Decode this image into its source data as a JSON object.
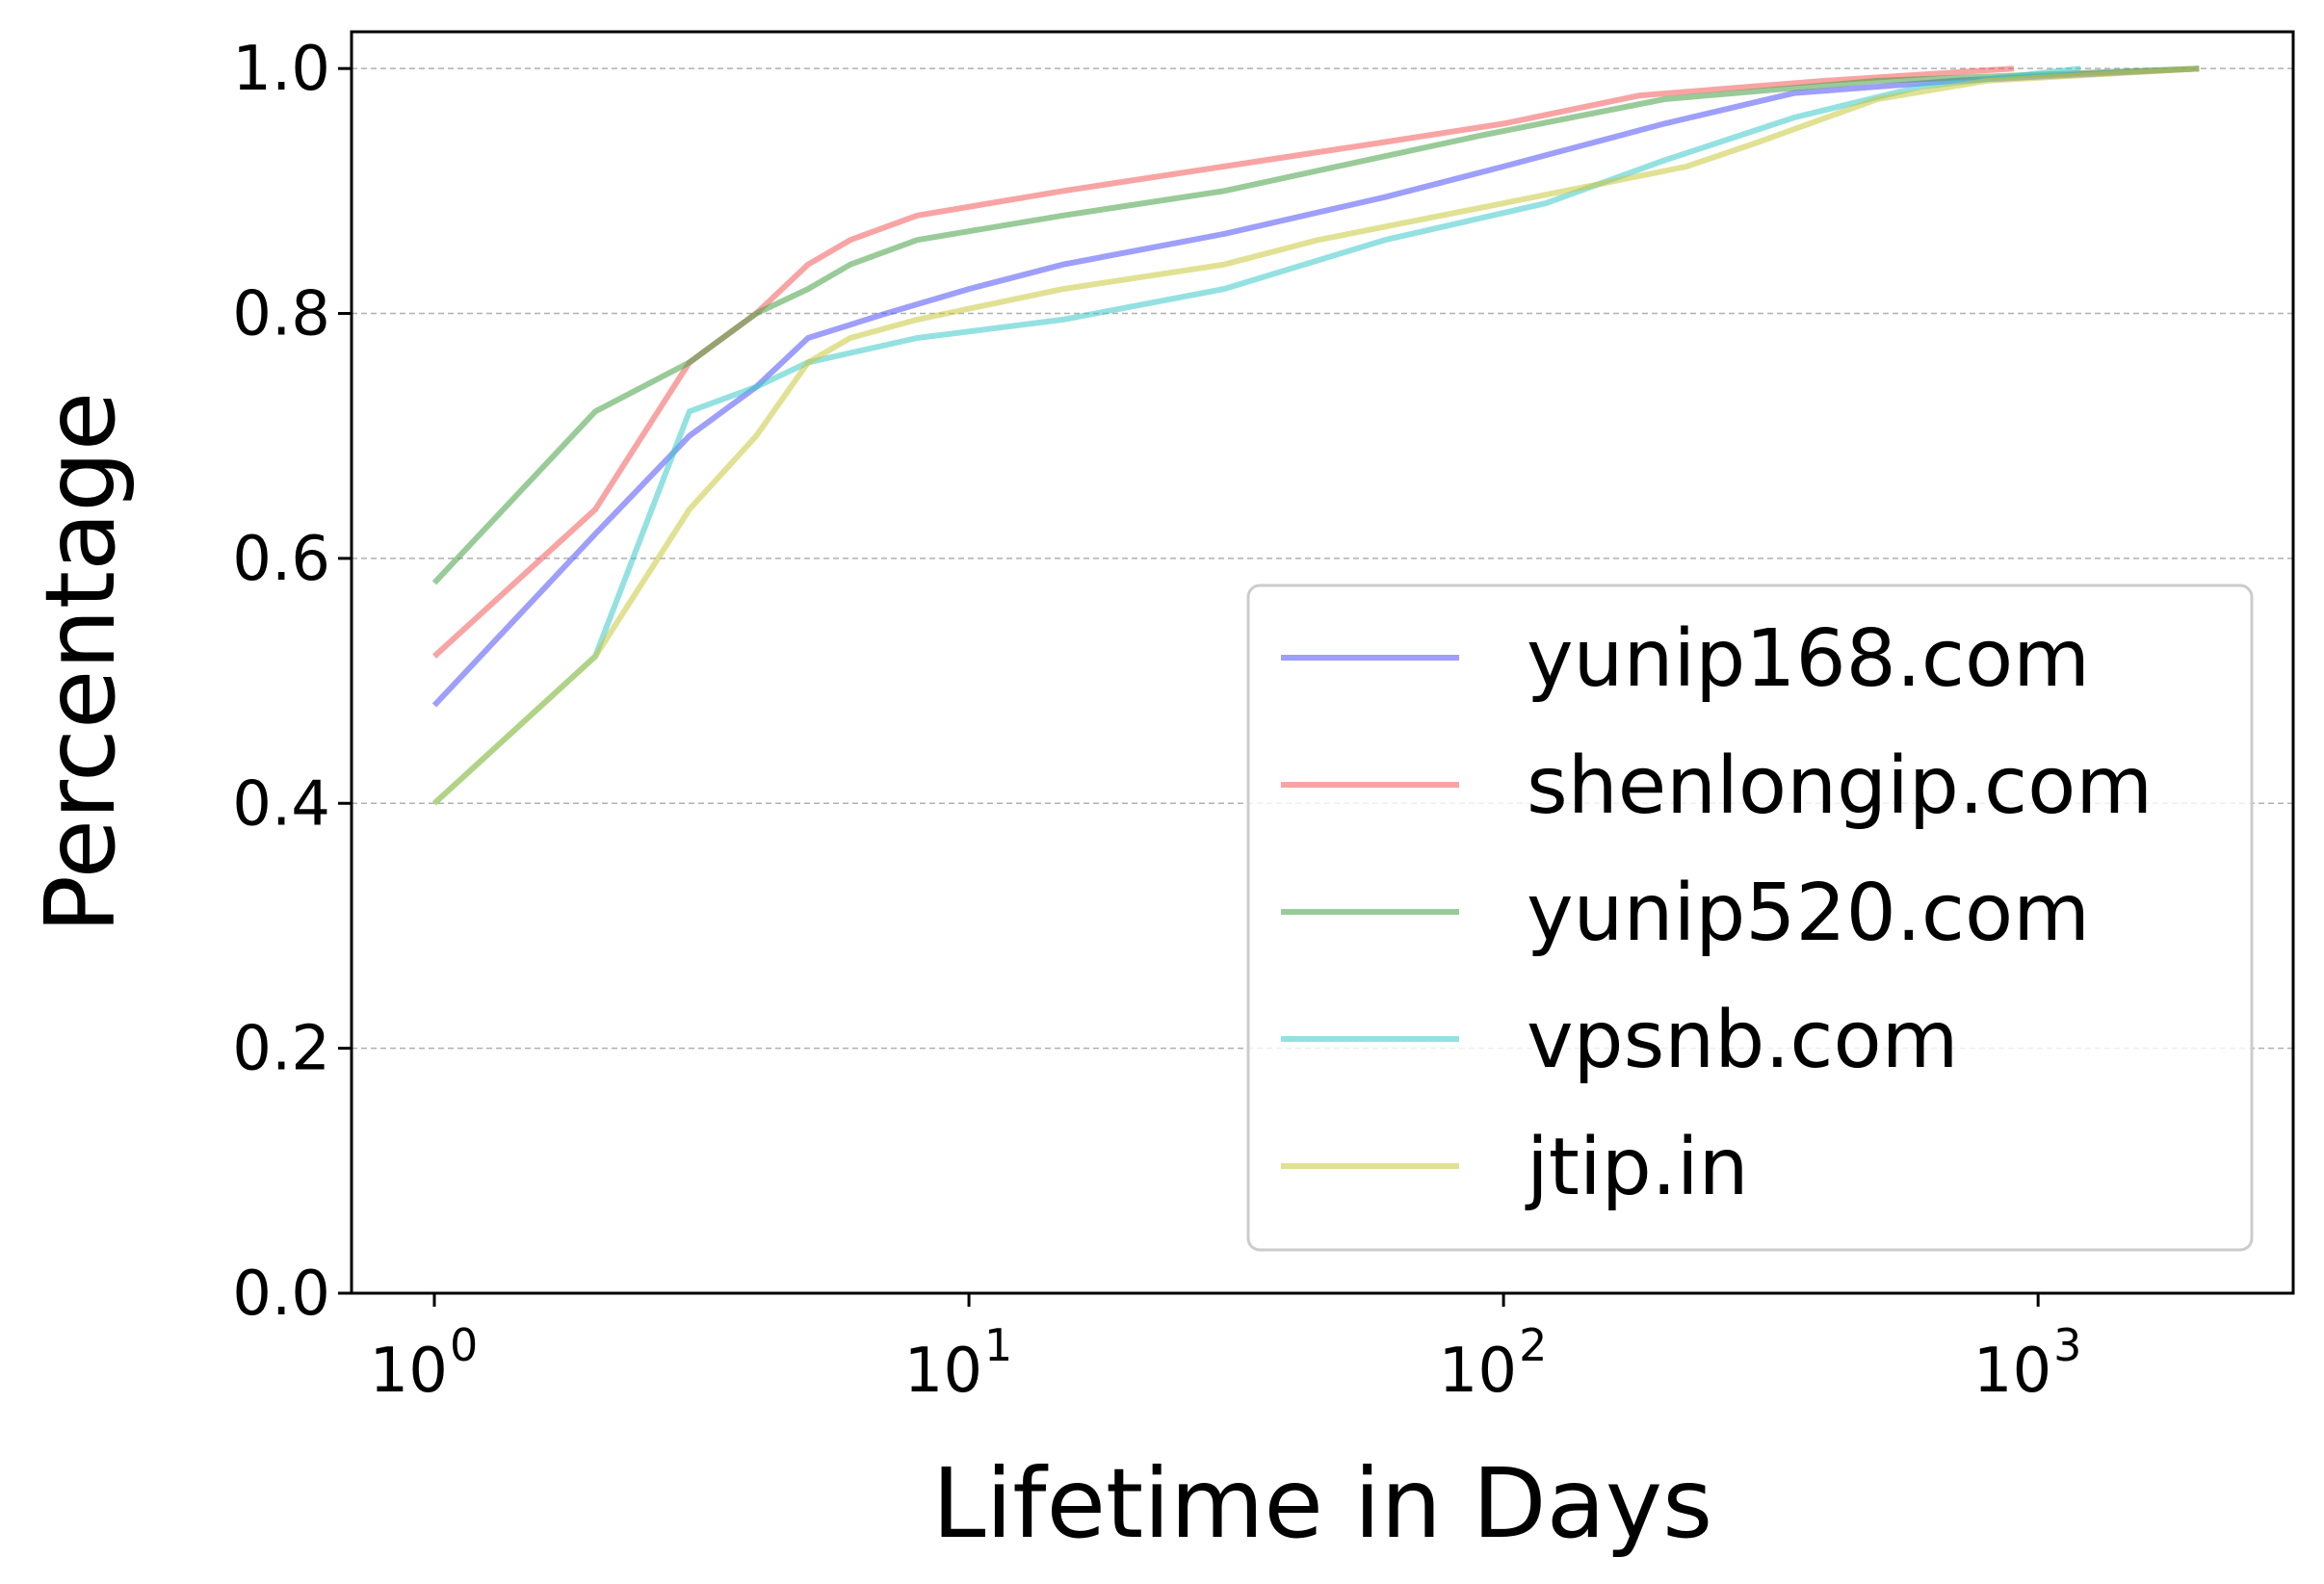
{
  "chart_data": {
    "type": "line",
    "title": "",
    "xlabel": "Lifetime in Days",
    "ylabel": "Percentage",
    "xscale": "log",
    "xlim": [
      0.7,
      3000
    ],
    "ylim": [
      0.0,
      1.03
    ],
    "grid": "y-dashed",
    "legend_position": "lower-right",
    "x_ticks": [
      {
        "base": "10",
        "exp": "0",
        "value": 1
      },
      {
        "base": "10",
        "exp": "1",
        "value": 10
      },
      {
        "base": "10",
        "exp": "2",
        "value": 100
      },
      {
        "base": "10",
        "exp": "3",
        "value": 1000
      }
    ],
    "y_ticks": [
      {
        "label": "0.0",
        "value": 0.0
      },
      {
        "label": "0.2",
        "value": 0.2
      },
      {
        "label": "0.4",
        "value": 0.4
      },
      {
        "label": "0.6",
        "value": 0.6
      },
      {
        "label": "0.8",
        "value": 0.8
      },
      {
        "label": "1.0",
        "value": 1.0
      }
    ],
    "series": [
      {
        "name": "yunip168.com",
        "color": "#4f4ff7",
        "points": [
          [
            1,
            0.48
          ],
          [
            2,
            0.62
          ],
          [
            3,
            0.7
          ],
          [
            4,
            0.74
          ],
          [
            5,
            0.78
          ],
          [
            7,
            0.8
          ],
          [
            10,
            0.82
          ],
          [
            15,
            0.84
          ],
          [
            30,
            0.865
          ],
          [
            60,
            0.895
          ],
          [
            100,
            0.92
          ],
          [
            200,
            0.955
          ],
          [
            350,
            0.98
          ],
          [
            700,
            0.99
          ],
          [
            2000,
            1.0
          ]
        ]
      },
      {
        "name": "shenlongip.com",
        "color": "#f35a5a",
        "points": [
          [
            1,
            0.52
          ],
          [
            2,
            0.64
          ],
          [
            3,
            0.76
          ],
          [
            4,
            0.8
          ],
          [
            5,
            0.84
          ],
          [
            6,
            0.86
          ],
          [
            8,
            0.88
          ],
          [
            15,
            0.9
          ],
          [
            30,
            0.92
          ],
          [
            60,
            0.94
          ],
          [
            100,
            0.955
          ],
          [
            180,
            0.978
          ],
          [
            400,
            0.99
          ],
          [
            900,
            1.0
          ]
        ]
      },
      {
        "name": "yunip520.com",
        "color": "#46a046",
        "points": [
          [
            1,
            0.58
          ],
          [
            2,
            0.72
          ],
          [
            3,
            0.76
          ],
          [
            4,
            0.8
          ],
          [
            5,
            0.82
          ],
          [
            6,
            0.84
          ],
          [
            8,
            0.86
          ],
          [
            15,
            0.88
          ],
          [
            30,
            0.9
          ],
          [
            90,
            0.945
          ],
          [
            200,
            0.975
          ],
          [
            500,
            0.99
          ],
          [
            2000,
            1.0
          ]
        ]
      },
      {
        "name": "vpsnb.com",
        "color": "#3cc8c8",
        "points": [
          [
            1,
            0.4
          ],
          [
            2,
            0.52
          ],
          [
            3,
            0.72
          ],
          [
            4,
            0.74
          ],
          [
            5,
            0.76
          ],
          [
            8,
            0.78
          ],
          [
            15,
            0.795
          ],
          [
            30,
            0.82
          ],
          [
            60,
            0.86
          ],
          [
            120,
            0.89
          ],
          [
            200,
            0.925
          ],
          [
            350,
            0.96
          ],
          [
            600,
            0.985
          ],
          [
            1200,
            1.0
          ]
        ]
      },
      {
        "name": "jtip.in",
        "color": "#c8c83c",
        "points": [
          [
            1,
            0.4
          ],
          [
            2,
            0.52
          ],
          [
            3,
            0.64
          ],
          [
            4,
            0.7
          ],
          [
            5,
            0.76
          ],
          [
            6,
            0.78
          ],
          [
            8,
            0.795
          ],
          [
            15,
            0.82
          ],
          [
            30,
            0.84
          ],
          [
            45,
            0.86
          ],
          [
            100,
            0.89
          ],
          [
            220,
            0.92
          ],
          [
            300,
            0.94
          ],
          [
            500,
            0.975
          ],
          [
            800,
            0.99
          ],
          [
            2000,
            1.0
          ]
        ]
      }
    ]
  }
}
